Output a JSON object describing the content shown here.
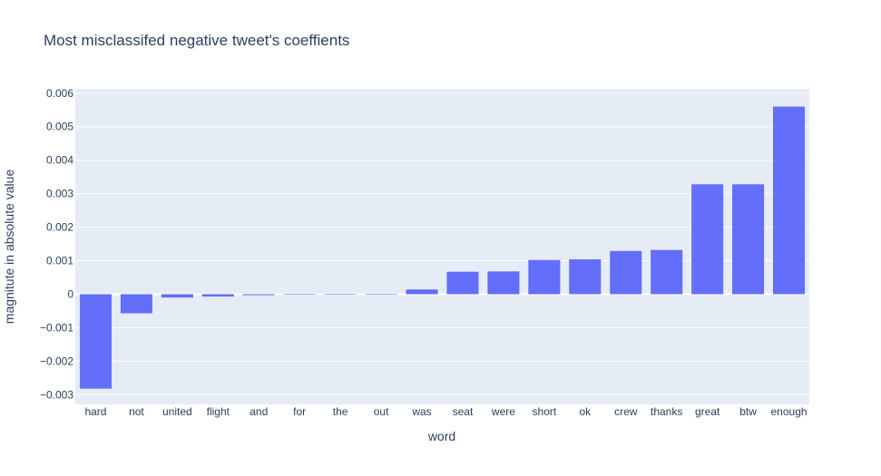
{
  "chart_data": {
    "type": "bar",
    "title": "Most misclassifed negative tweet's coeffients",
    "xlabel": "word",
    "ylabel": "magnitute in absolute value",
    "categories": [
      "hard",
      "not",
      "united",
      "flight",
      "and",
      "for",
      "the",
      "out",
      "was",
      "seat",
      "were",
      "short",
      "ok",
      "crew",
      "thanks",
      "great",
      "btw",
      "enough"
    ],
    "values": [
      -0.00282,
      -0.00057,
      -0.0001,
      -7e-05,
      -3e-05,
      -1e-05,
      -1e-05,
      -1e-05,
      0.00014,
      0.00067,
      0.00068,
      0.00102,
      0.00104,
      0.00129,
      0.00132,
      0.00328,
      0.00328,
      0.0056
    ],
    "ylim": [
      -0.00329,
      0.00613
    ],
    "yticks": [
      -0.003,
      -0.002,
      -0.001,
      0,
      0.001,
      0.002,
      0.003,
      0.004,
      0.005,
      0.006
    ],
    "ytick_labels": [
      "−0.003",
      "−0.002",
      "−0.001",
      "0",
      "0.001",
      "0.002",
      "0.003",
      "0.004",
      "0.005",
      "0.006"
    ],
    "grid": true,
    "colors": {
      "bar": "#636efa",
      "plot_bg": "#e5ecf6",
      "grid": "#ffffff",
      "text": "#2a3f5f"
    }
  }
}
